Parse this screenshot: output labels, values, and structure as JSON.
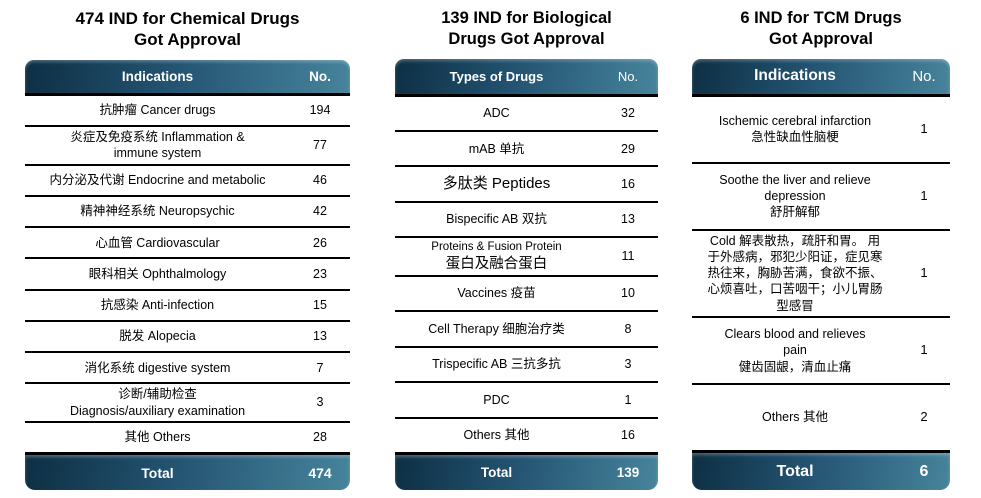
{
  "colors": {
    "background": "#ffffff",
    "band_gradient_start": "#0d2f43",
    "band_gradient_end": "#47849c",
    "band_text": "#ffffff",
    "row_text": "#000000",
    "divider": "#000000"
  },
  "tables": [
    {
      "title": "474 IND for Chemical Drugs\nGot Approval",
      "columns": {
        "label": "Indications",
        "no": "No."
      },
      "rows": [
        {
          "label": "抗肿瘤 Cancer drugs",
          "value": "194"
        },
        {
          "label": "炎症及免疫系统 Inflammation &\nimmune system",
          "value": "77"
        },
        {
          "label": "内分泌及代谢 Endocrine and metabolic",
          "value": "46"
        },
        {
          "label": "精神神经系统 Neuropsychic",
          "value": "42"
        },
        {
          "label": "心血管 Cardiovascular",
          "value": "26"
        },
        {
          "label": "眼科相关 Ophthalmology",
          "value": "23"
        },
        {
          "label": "抗感染 Anti-infection",
          "value": "15"
        },
        {
          "label": "脱发 Alopecia",
          "value": "13"
        },
        {
          "label": "消化系统 digestive system",
          "value": "7"
        },
        {
          "label": "诊断/辅助检查\nDiagnosis/auxiliary examination",
          "value": "3"
        },
        {
          "label": "其他 Others",
          "value": "28"
        }
      ],
      "total": {
        "label": "Total",
        "value": "474"
      }
    },
    {
      "title": "139 IND for Biological\nDrugs Got Approval",
      "columns": {
        "label": "Types of Drugs",
        "no": "No."
      },
      "rows": [
        {
          "label": "ADC",
          "value": "32"
        },
        {
          "label": "mAB 单抗",
          "value": "29"
        },
        {
          "label": "多肽类 Peptides",
          "value": "16"
        },
        {
          "label": "Bispecific AB 双抗",
          "value": "13"
        },
        {
          "label_en": "Proteins & Fusion Protein",
          "label_zh": "蛋白及融合蛋白",
          "value": "11"
        },
        {
          "label": "Vaccines 疫苗",
          "value": "10"
        },
        {
          "label": "Cell Therapy 细胞治疗类",
          "value": "8"
        },
        {
          "label": "Trispecific AB 三抗多抗",
          "value": "3"
        },
        {
          "label": "PDC",
          "value": "1"
        },
        {
          "label": "Others 其他",
          "value": "16"
        }
      ],
      "total": {
        "label": "Total",
        "value": "139"
      }
    },
    {
      "title": "6 IND for TCM Drugs\nGot Approval",
      "columns": {
        "label": "Indications",
        "no": "No."
      },
      "rows": [
        {
          "label": "Ischemic cerebral infarction\n急性缺血性脑梗",
          "value": "1"
        },
        {
          "label": "Soothe the liver and relieve\ndepression\n舒肝解郁",
          "value": "1"
        },
        {
          "label": "Cold 解表散热，疏肝和胃。 用\n于外感病，邪犯少阳证，症见寒\n热往来，胸胁苦满，食欲不振、\n心烦喜吐，口苦咽干；小儿胃肠\n型感冒",
          "value": "1"
        },
        {
          "label": "Clears blood and relieves\npain\n健齿固龈，清血止痛",
          "value": "1"
        },
        {
          "label": "Others 其他",
          "value": "2"
        }
      ],
      "total": {
        "label": "Total",
        "value": "6"
      }
    }
  ]
}
